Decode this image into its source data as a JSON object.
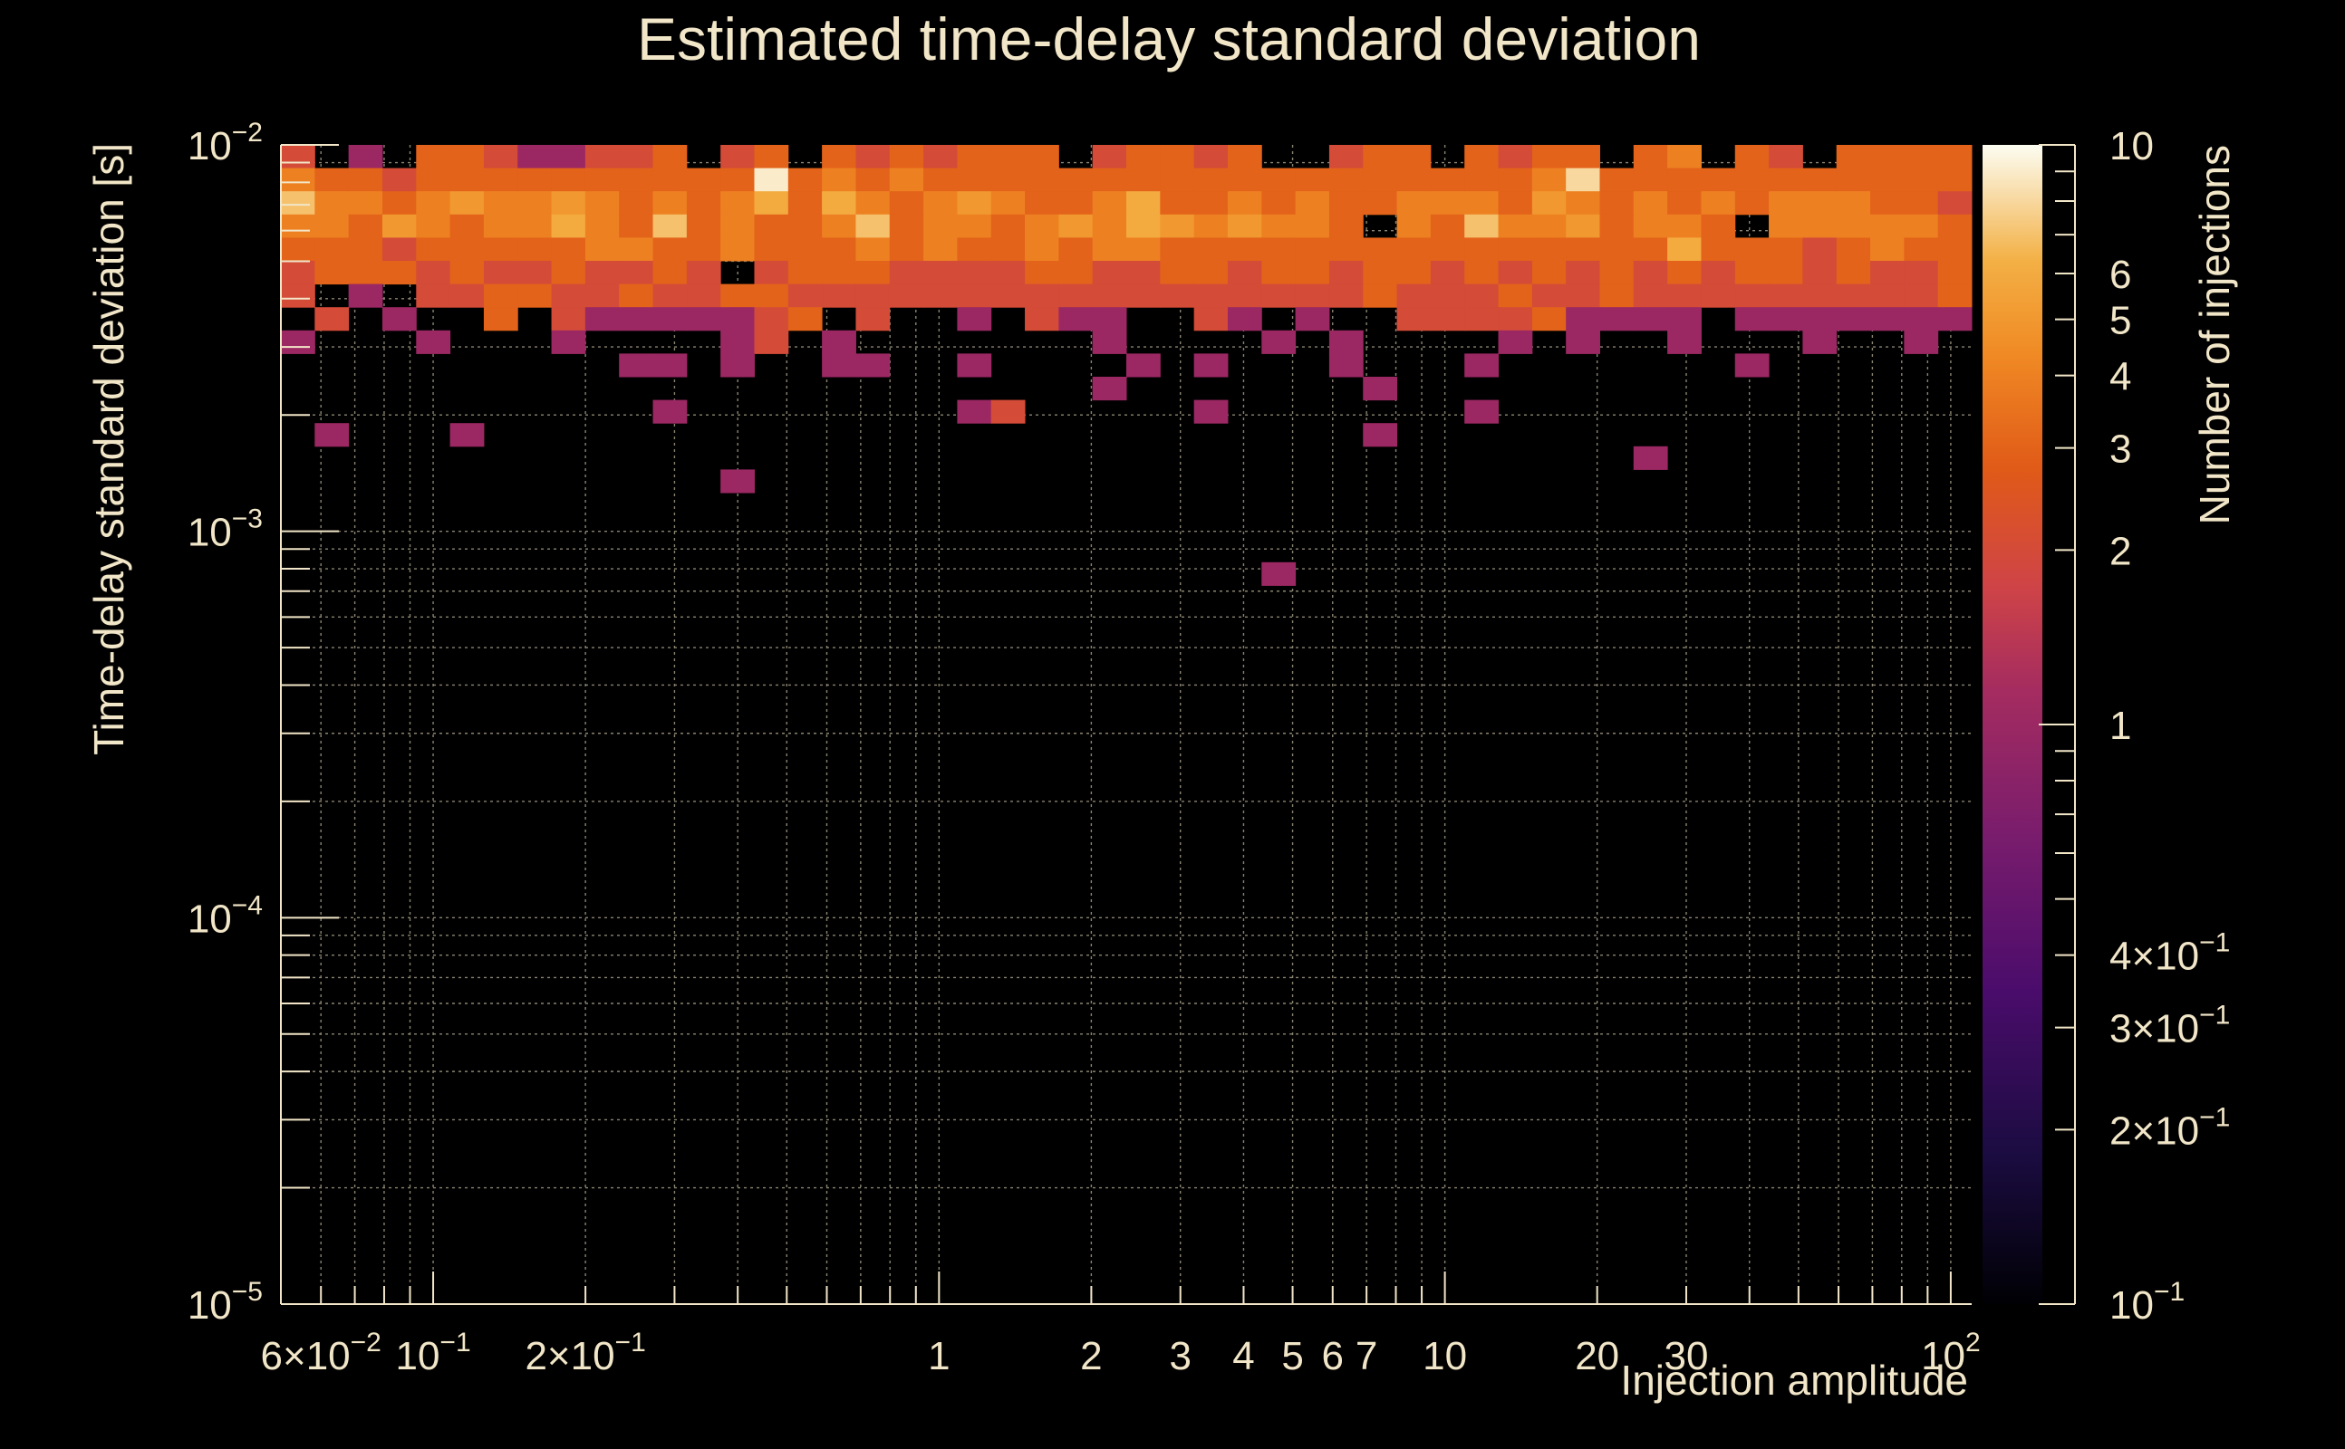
{
  "chart_data": {
    "type": "heatmap",
    "title": "Estimated time-delay standard deviation",
    "xlabel": "Injection amplitude",
    "ylabel": "Time-delay standard deviation [s]",
    "zlabel": "Number of injections",
    "x_scale": "log",
    "y_scale": "log",
    "z_scale": "log",
    "xlim": [
      0.05,
      110
    ],
    "ylim": [
      1e-05,
      0.01
    ],
    "zlim": [
      0.1,
      10
    ],
    "grid": true,
    "colormap": "inferno",
    "x_ticks": [
      {
        "value": 0.06,
        "base": "6×10",
        "exp": "−2"
      },
      {
        "value": 0.1,
        "base": "10",
        "exp": "−1"
      },
      {
        "value": 0.2,
        "base": "2×10",
        "exp": "−1"
      },
      {
        "value": 1,
        "base": "1",
        "exp": ""
      },
      {
        "value": 2,
        "base": "2",
        "exp": ""
      },
      {
        "value": 3,
        "base": "3",
        "exp": ""
      },
      {
        "value": 4,
        "base": "4",
        "exp": ""
      },
      {
        "value": 5,
        "base": "5",
        "exp": ""
      },
      {
        "value": 6,
        "base": "6",
        "exp": ""
      },
      {
        "value": 7,
        "base": "7",
        "exp": ""
      },
      {
        "value": 10,
        "base": "10",
        "exp": ""
      },
      {
        "value": 20,
        "base": "20",
        "exp": ""
      },
      {
        "value": 30,
        "base": "30",
        "exp": ""
      },
      {
        "value": 100,
        "base": "10",
        "exp": "2"
      }
    ],
    "y_ticks": [
      {
        "value": 0.01,
        "base": "10",
        "exp": "−2"
      },
      {
        "value": 0.001,
        "base": "10",
        "exp": "−3"
      },
      {
        "value": 0.0001,
        "base": "10",
        "exp": "−4"
      },
      {
        "value": 1e-05,
        "base": "10",
        "exp": "−5"
      }
    ],
    "z_ticks": [
      {
        "value": 10,
        "base": "10",
        "exp": ""
      },
      {
        "value": 6,
        "base": "6",
        "exp": ""
      },
      {
        "value": 5,
        "base": "5",
        "exp": ""
      },
      {
        "value": 4,
        "base": "4",
        "exp": ""
      },
      {
        "value": 3,
        "base": "3",
        "exp": ""
      },
      {
        "value": 2,
        "base": "2",
        "exp": ""
      },
      {
        "value": 1,
        "base": "1",
        "exp": ""
      },
      {
        "value": 0.4,
        "base": "4×10",
        "exp": "−1"
      },
      {
        "value": 0.3,
        "base": "3×10",
        "exp": "−1"
      },
      {
        "value": 0.2,
        "base": "2×10",
        "exp": "−1"
      },
      {
        "value": 0.1,
        "base": "10",
        "exp": "−1"
      }
    ],
    "bins": {
      "x_edges_count": 50,
      "y_edges_count": 50,
      "note_x_range": [
        0.05,
        110
      ],
      "note_y_range": [
        1e-05,
        0.01
      ]
    },
    "cells_rowcol": [
      "49:0:2",
      "49:2:1",
      "49:4:3",
      "49:5:3",
      "49:6:2",
      "49:7:1",
      "49:8:1",
      "49:9:2",
      "49:10:2",
      "49:11:3",
      "49:13:2",
      "49:14:3",
      "49:16:3",
      "49:17:2",
      "49:18:3",
      "49:19:2",
      "49:20:3",
      "49:21:3",
      "49:22:3",
      "49:24:2",
      "49:25:3",
      "49:26:3",
      "49:27:2",
      "49:28:3",
      "49:31:2",
      "49:32:3",
      "49:33:3",
      "49:35:3",
      "49:36:2",
      "49:37:3",
      "49:38:3",
      "49:40:3",
      "49:41:4",
      "49:43:3",
      "49:44:2",
      "49:46:3",
      "49:47:3",
      "49:48:3",
      "49:49:3",
      "48:0:4",
      "48:1:3",
      "48:2:3",
      "48:3:2",
      "48:4:3",
      "48:5:3",
      "48:6:3",
      "48:7:3",
      "48:8:3",
      "48:9:3",
      "48:10:3",
      "48:11:3",
      "48:12:3",
      "48:13:3",
      "48:14:9",
      "48:15:3",
      "48:16:4",
      "48:17:3",
      "48:18:4",
      "48:19:3",
      "48:20:3",
      "48:21:3",
      "48:22:3",
      "48:23:3",
      "48:24:3",
      "48:25:3",
      "48:26:3",
      "48:27:3",
      "48:28:3",
      "48:29:3",
      "48:30:3",
      "48:31:3",
      "48:32:3",
      "48:33:3",
      "48:34:3",
      "48:35:3",
      "48:36:3",
      "48:37:4",
      "48:38:8",
      "48:39:3",
      "48:40:3",
      "48:41:3",
      "48:42:3",
      "48:43:3",
      "48:44:3",
      "48:45:3",
      "48:46:3",
      "48:47:3",
      "48:48:3",
      "48:49:3",
      "47:0:7",
      "47:1:4",
      "47:2:4",
      "47:3:3",
      "47:4:4",
      "47:5:5",
      "47:6:4",
      "47:7:4",
      "47:8:5",
      "47:9:4",
      "47:10:3",
      "47:11:4",
      "47:12:3",
      "47:13:4",
      "47:14:6",
      "47:15:3",
      "47:16:6",
      "47:17:4",
      "47:18:3",
      "47:19:4",
      "47:20:5",
      "47:21:4",
      "47:22:3",
      "47:23:3",
      "47:24:4",
      "47:25:6",
      "47:26:3",
      "47:27:3",
      "47:28:4",
      "47:29:3",
      "47:30:4",
      "47:31:3",
      "47:32:3",
      "47:33:4",
      "47:34:4",
      "47:35:4",
      "47:36:3",
      "47:37:5",
      "47:38:4",
      "47:39:3",
      "47:40:4",
      "47:41:3",
      "47:42:4",
      "47:43:3",
      "47:44:4",
      "47:45:4",
      "47:46:4",
      "47:47:3",
      "47:48:3",
      "47:49:2",
      "46:0:4",
      "46:1:4",
      "46:2:3",
      "46:3:5",
      "46:4:4",
      "46:5:3",
      "46:6:4",
      "46:7:4",
      "46:8:6",
      "46:9:4",
      "46:10:3",
      "46:11:7",
      "46:12:3",
      "46:13:4",
      "46:14:3",
      "46:15:3",
      "46:16:4",
      "46:17:7",
      "46:18:3",
      "46:19:4",
      "46:20:4",
      "46:21:3",
      "46:22:4",
      "46:23:5",
      "46:24:4",
      "46:25:6",
      "46:26:5",
      "46:27:4",
      "46:28:5",
      "46:29:4",
      "46:30:4",
      "46:31:3",
      "46:33:4",
      "46:34:3",
      "46:35:7",
      "46:36:4",
      "46:37:4",
      "46:38:5",
      "46:39:3",
      "46:40:4",
      "46:41:4",
      "46:42:3",
      "46:44:4",
      "46:45:4",
      "46:46:4",
      "46:47:4",
      "46:48:4",
      "46:49:3",
      "45:0:3",
      "45:1:3",
      "45:2:3",
      "45:3:2",
      "45:4:3",
      "45:5:3",
      "45:6:3",
      "45:7:3",
      "45:8:3",
      "45:9:4",
      "45:10:4",
      "45:11:3",
      "45:12:3",
      "45:13:4",
      "45:14:3",
      "45:15:3",
      "45:16:3",
      "45:17:4",
      "45:18:3",
      "45:19:4",
      "45:20:3",
      "45:21:3",
      "45:22:4",
      "45:23:3",
      "45:24:4",
      "45:25:4",
      "45:26:3",
      "45:27:3",
      "45:28:3",
      "45:29:3",
      "45:30:3",
      "45:31:3",
      "45:32:3",
      "45:33:3",
      "45:34:3",
      "45:35:3",
      "45:36:3",
      "45:37:3",
      "45:38:3",
      "45:39:3",
      "45:40:3",
      "45:41:6",
      "45:42:3",
      "45:43:3",
      "45:44:3",
      "45:45:2",
      "45:46:3",
      "45:47:4",
      "45:48:3",
      "45:49:3",
      "44:0:2",
      "44:1:3",
      "44:2:3",
      "44:3:3",
      "44:4:2",
      "44:5:3",
      "44:6:2",
      "44:7:2",
      "44:8:3",
      "44:9:2",
      "44:10:2",
      "44:11:3",
      "44:12:2",
      "44:14:2",
      "44:15:3",
      "44:16:3",
      "44:17:3",
      "44:18:2",
      "44:19:2",
      "44:20:2",
      "44:21:2",
      "44:22:3",
      "44:23:3",
      "44:24:2",
      "44:25:2",
      "44:26:3",
      "44:27:3",
      "44:28:2",
      "44:29:3",
      "44:30:3",
      "44:31:2",
      "44:32:3",
      "44:33:3",
      "44:34:2",
      "44:35:3",
      "44:36:2",
      "44:37:3",
      "44:38:2",
      "44:39:3",
      "44:40:2",
      "44:41:3",
      "44:42:2",
      "44:43:3",
      "44:44:3",
      "44:45:2",
      "44:46:3",
      "44:47:2",
      "44:48:2",
      "44:49:3",
      "43:0:2",
      "43:2:1",
      "43:4:2",
      "43:5:2",
      "43:6:3",
      "43:7:3",
      "43:8:2",
      "43:9:2",
      "43:10:3",
      "43:11:2",
      "43:12:2",
      "43:13:3",
      "43:14:3",
      "43:15:2",
      "43:16:2",
      "43:17:2",
      "43:18:2",
      "43:19:2",
      "43:20:2",
      "43:21:2",
      "43:22:2",
      "43:23:2",
      "43:24:2",
      "43:25:2",
      "43:26:2",
      "43:27:2",
      "43:28:2",
      "43:29:2",
      "43:30:2",
      "43:31:2",
      "43:32:3",
      "43:33:2",
      "43:34:2",
      "43:35:2",
      "43:36:3",
      "43:37:2",
      "43:38:2",
      "43:39:3",
      "43:40:2",
      "43:41:2",
      "43:42:2",
      "43:43:2",
      "43:44:2",
      "43:45:2",
      "43:46:2",
      "43:47:2",
      "43:48:2",
      "43:49:3",
      "42:1:2",
      "42:3:1",
      "42:6:3",
      "42:8:2",
      "42:9:1",
      "42:10:1",
      "42:11:1",
      "42:12:1",
      "42:13:1",
      "42:14:2",
      "42:15:3",
      "42:17:2",
      "42:20:1",
      "42:22:2",
      "42:23:1",
      "42:24:1",
      "42:27:2",
      "42:28:1",
      "42:30:1",
      "42:33:2",
      "42:34:2",
      "42:35:2",
      "42:36:2",
      "42:37:3",
      "42:38:1",
      "42:39:1",
      "42:40:1",
      "42:41:1",
      "42:43:1",
      "42:44:1",
      "42:45:1",
      "42:46:1",
      "42:47:1",
      "42:48:1",
      "42:49:1",
      "41:0:1",
      "41:4:1",
      "41:8:1",
      "41:13:1",
      "41:14:2",
      "41:16:1",
      "41:24:1",
      "41:29:1",
      "41:31:1",
      "41:36:1",
      "41:38:1",
      "41:41:1",
      "41:45:1",
      "41:48:1",
      "40:10:1",
      "40:11:1",
      "40:13:1",
      "40:16:1",
      "40:17:1",
      "40:20:1",
      "40:25:1",
      "40:27:1",
      "40:31:1",
      "40:35:1",
      "40:43:1",
      "39:24:1",
      "39:32:1",
      "38:11:1",
      "38:20:1",
      "38:21:2",
      "38:27:1",
      "38:35:1",
      "37:1:1",
      "37:5:1",
      "37:32:1",
      "36:40:1",
      "35:13:1",
      "31:29:1"
    ]
  }
}
